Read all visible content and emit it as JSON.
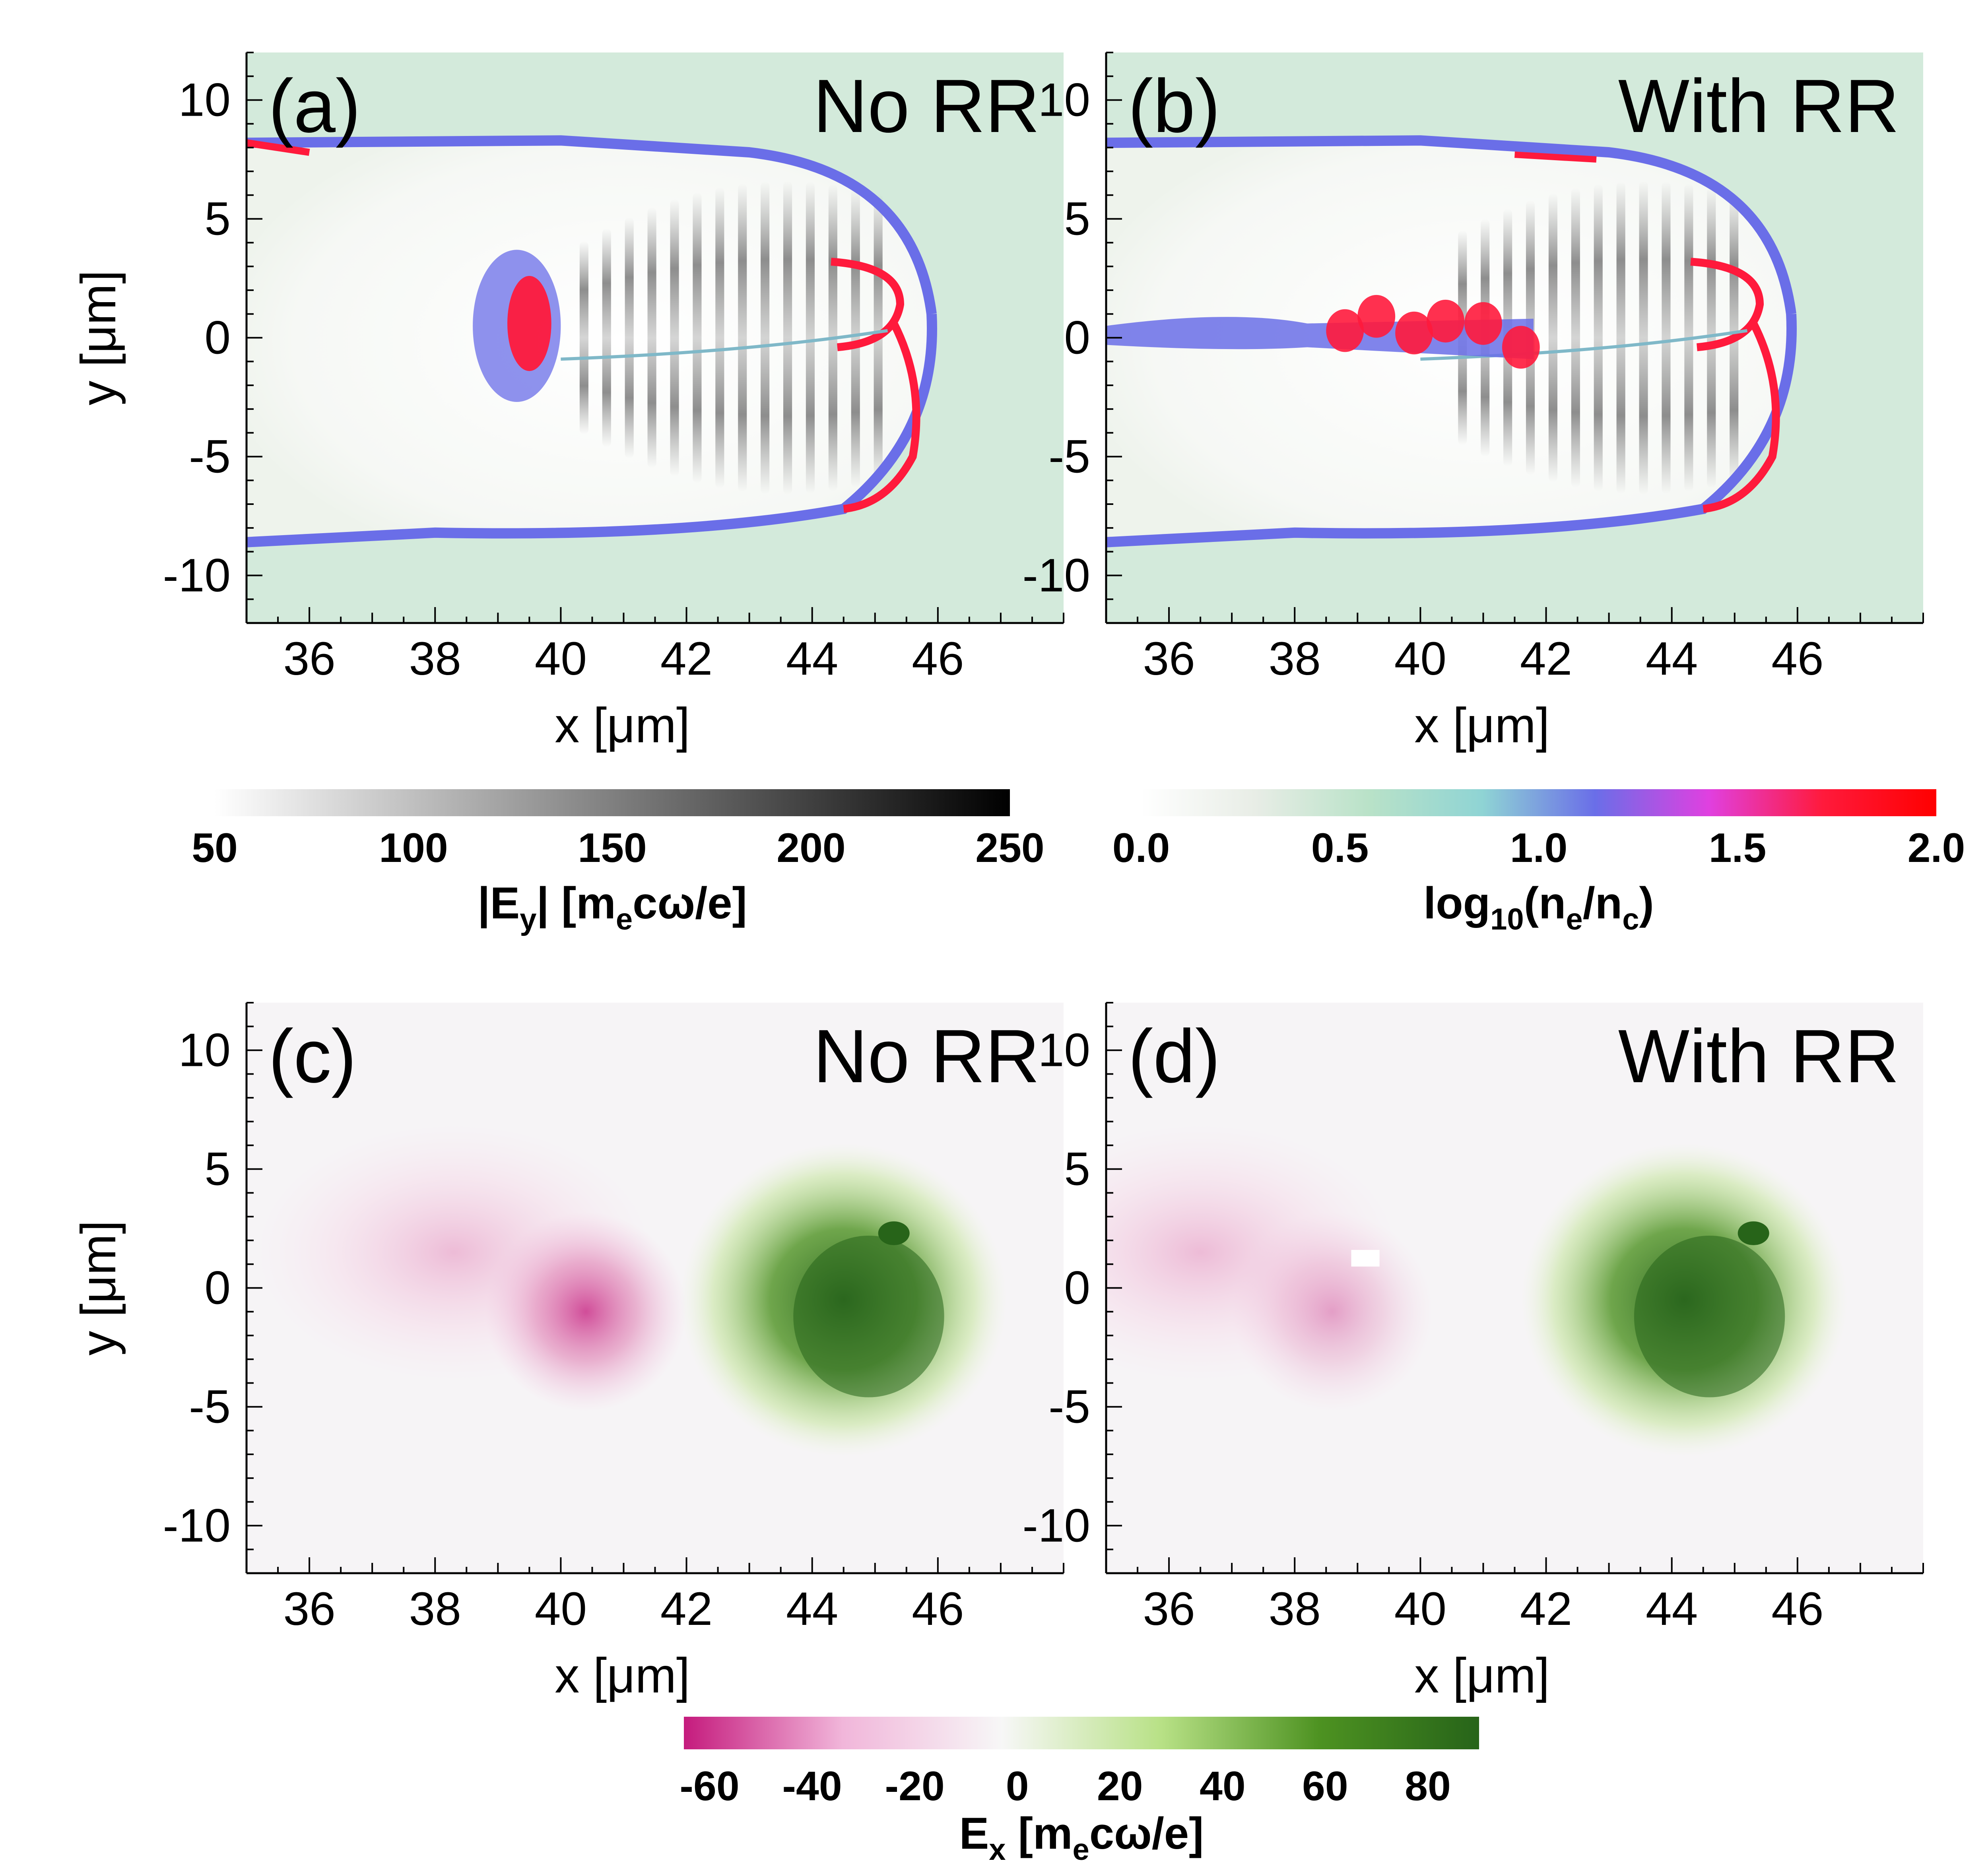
{
  "chart_data": [
    {
      "id": "a",
      "type": "heatmap",
      "label": "(a)",
      "title": "No RR",
      "xlabel": "x [μm]",
      "ylabel": "y [μm]",
      "xlim": [
        35,
        48
      ],
      "ylim": [
        -12,
        12
      ],
      "xticks": [
        36,
        38,
        40,
        42,
        44,
        46
      ],
      "yticks": [
        -10,
        -5,
        0,
        5,
        10
      ],
      "fields": [
        "|Ey| (gray)",
        "log10(ne/nc) (color)"
      ],
      "features": {
        "density_spike_x": 39.5,
        "density_spike_y": 0.5,
        "front_x": 45.5
      }
    },
    {
      "id": "b",
      "type": "heatmap",
      "label": "(b)",
      "title": "With RR",
      "xlabel": "x [μm]",
      "ylabel": "y [μm]",
      "xlim": [
        35,
        48
      ],
      "ylim": [
        -12,
        12
      ],
      "xticks": [
        36,
        38,
        40,
        42,
        44,
        46
      ],
      "yticks": [
        -10,
        -5,
        0,
        5,
        10
      ],
      "fields": [
        "|Ey| (gray)",
        "log10(ne/nc) (color)"
      ],
      "features": {
        "density_filament_from_x": 35,
        "density_filament_to_x": 41.5,
        "front_x": 45.5
      }
    },
    {
      "id": "c",
      "type": "heatmap",
      "label": "(c)",
      "title": "No RR",
      "xlabel": "x [μm]",
      "ylabel": "y [μm]",
      "xlim": [
        35,
        48
      ],
      "ylim": [
        -12,
        12
      ],
      "xticks": [
        36,
        38,
        40,
        42,
        44,
        46
      ],
      "yticks": [
        -10,
        -5,
        0,
        5,
        10
      ],
      "fields": [
        "Ex"
      ],
      "features": {
        "negative_lobe_x": 39.8,
        "positive_lobe_x": 44.5
      }
    },
    {
      "id": "d",
      "type": "heatmap",
      "label": "(d)",
      "title": "With RR",
      "xlabel": "x [μm]",
      "ylabel": "y [μm]",
      "xlim": [
        35,
        48
      ],
      "ylim": [
        -12,
        12
      ],
      "xticks": [
        36,
        38,
        40,
        42,
        44,
        46
      ],
      "yticks": [
        -10,
        -5,
        0,
        5,
        10
      ],
      "fields": [
        "Ex"
      ],
      "features": {
        "negative_lobe_x": 38.0,
        "positive_lobe_x": 44.2
      }
    }
  ],
  "colorbars": [
    {
      "id": "ey",
      "label_main": "|E",
      "label_sub": "y",
      "label_tail": "|  [m",
      "label_sub2": "e",
      "label_end": "cω/e]",
      "range": [
        50,
        250
      ],
      "ticks": [
        "50",
        "100",
        "150",
        "200",
        "250"
      ],
      "colors": [
        "#ffffff",
        "#000000"
      ]
    },
    {
      "id": "ne",
      "label_main": "log",
      "label_sub": "10",
      "label_tail": "(n",
      "label_sub2": "e",
      "label_end": "/n",
      "label_sub3": "c",
      "label_close": ")",
      "range": [
        0,
        2
      ],
      "ticks": [
        "0.0",
        "0.5",
        "1.0",
        "1.5",
        "2.0"
      ],
      "colors": [
        "#ffffff",
        "#e8ede6",
        "#b9e2c8",
        "#8fd4d4",
        "#6a6ee8",
        "#e040e0",
        "#ff1a3c",
        "#ff0000"
      ]
    },
    {
      "id": "ex",
      "label_main": "E",
      "label_sub": "x",
      "label_tail": " [m",
      "label_sub2": "e",
      "label_end": "cω/e]",
      "range": [
        -65,
        90
      ],
      "ticks": [
        "-60",
        "-40",
        "-20",
        "0",
        "20",
        "40",
        "60",
        "80"
      ],
      "tick_values": [
        -60,
        -40,
        -20,
        0,
        20,
        40,
        60,
        80
      ],
      "colors": [
        "#c51b7d",
        "#f1b6da",
        "#f7f7f7",
        "#b8e186",
        "#4d9221",
        "#276419"
      ]
    }
  ]
}
